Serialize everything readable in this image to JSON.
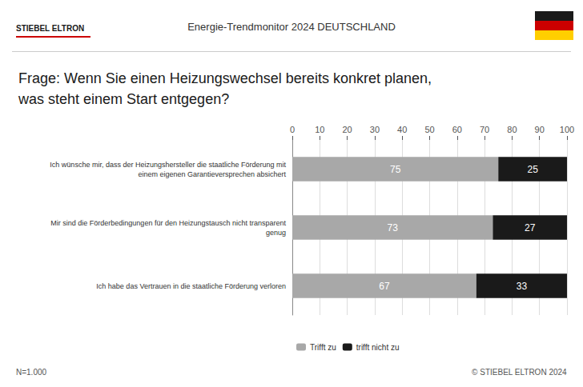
{
  "chart_data": {
    "type": "bar",
    "orientation": "horizontal",
    "stacked": true,
    "data_labels": true,
    "grid": true,
    "legend": "lower left",
    "title": "Energie-Trendmonitor 2024 DEUTSCHLAND",
    "subtitle": "Frage: Wenn Sie einen Heizungswechsel bereits konkret planen,\nwas steht einem Start entgegen?",
    "annotations": [
      "STIEBEL ELTRON",
      "N=1.000",
      "© STIEBEL ELTRON 2024"
    ],
    "categories": [
      "Ich wünsche mir, dass der Heizungshersteller die staatliche Förderung mit\neinem eigenen Garantieversprechen absichert",
      "Mir sind die Förderbedingungen für den Heizungstausch nicht transparent\ngenug",
      "Ich habe das Vertrauen in die staatliche Förderung verloren"
    ],
    "series": [
      {
        "name": "Trifft zu",
        "color": "#A8A8A8",
        "values": [
          75,
          73,
          67
        ]
      },
      {
        "name": "trifft nicht zu",
        "color": "#1A1A1A",
        "values": [
          25,
          27,
          33
        ]
      }
    ],
    "xlim": [
      0,
      100
    ],
    "xticks": [
      0,
      10,
      20,
      30,
      40,
      50,
      60,
      70,
      80,
      90,
      100
    ]
  }
}
